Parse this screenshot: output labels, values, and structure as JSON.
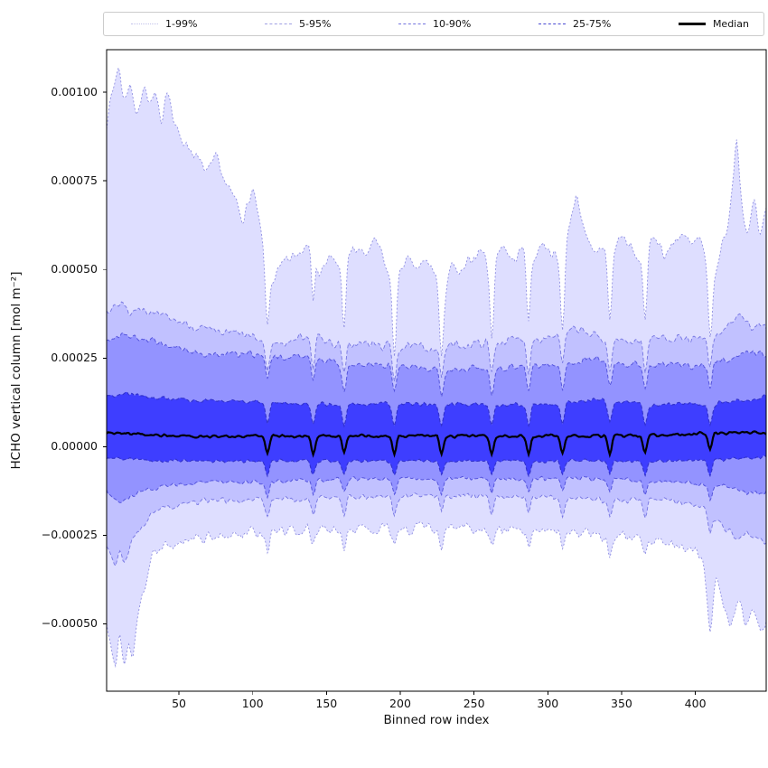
{
  "legend": {
    "items": [
      {
        "label": "1-99%",
        "color": "#c2c2ea",
        "style": "dotted"
      },
      {
        "label": "5-95%",
        "color": "#a0a0e4",
        "style": "dashed"
      },
      {
        "label": "10-90%",
        "color": "#7474de",
        "style": "dashed"
      },
      {
        "label": "25-75%",
        "color": "#4a4ad2",
        "style": "dashed"
      },
      {
        "label": "Median",
        "color": "#000000",
        "style": "solid"
      }
    ]
  },
  "chart_data": {
    "type": "area",
    "subtype": "percentile-band-plot",
    "title": "",
    "xlabel": "Binned row index",
    "ylabel": "HCHO vertical column [mol m⁻²]",
    "xlim": [
      1,
      448
    ],
    "ylim": [
      -0.00069,
      0.00112
    ],
    "grid": false,
    "legend_position": "top",
    "x_tick_values": [
      50,
      100,
      150,
      200,
      250,
      300,
      350,
      400
    ],
    "x_tick_labels": [
      "50",
      "100",
      "150",
      "200",
      "250",
      "300",
      "350",
      "400"
    ],
    "y_tick_values": [
      0.001,
      0.00075,
      0.0005,
      0.00025,
      0,
      -0.00025,
      -0.0005
    ],
    "y_tick_labels": [
      "0.00100",
      "0.00075",
      "0.00050",
      "0.00025",
      "0.00000",
      "−0.00025",
      "−0.00050"
    ],
    "n_points": 448,
    "noise_seed": 7,
    "spikes": {
      "positions": [
        110,
        141,
        162,
        196,
        228,
        262,
        287,
        310,
        342,
        366,
        410
      ],
      "sigma": 1.3
    },
    "series": [
      {
        "name": "p99",
        "noise": 2.5e-05,
        "spike_dip": 0.00018,
        "anchors": [
          [
            1,
            0.00092
          ],
          [
            5,
            0.001
          ],
          [
            9,
            0.00108
          ],
          [
            13,
            0.00097
          ],
          [
            17,
            0.00104
          ],
          [
            21,
            0.00092
          ],
          [
            26,
            0.00103
          ],
          [
            30,
            0.00096
          ],
          [
            34,
            0.00099
          ],
          [
            38,
            0.00091
          ],
          [
            42,
            0.00103
          ],
          [
            47,
            0.0009
          ],
          [
            52,
            0.00087
          ],
          [
            58,
            0.00084
          ],
          [
            64,
            0.0008
          ],
          [
            70,
            0.00077
          ],
          [
            76,
            0.00082
          ],
          [
            82,
            0.00073
          ],
          [
            88,
            0.0007
          ],
          [
            94,
            0.00064
          ],
          [
            100,
            0.00073
          ],
          [
            104,
            0.00064
          ],
          [
            108,
            0.00054
          ],
          [
            114,
            0.00047
          ],
          [
            122,
            0.00052
          ],
          [
            130,
            0.00054
          ],
          [
            136,
            0.00057
          ],
          [
            140,
            0.00063
          ],
          [
            145,
            0.00049
          ],
          [
            152,
            0.00053
          ],
          [
            160,
            0.00051
          ],
          [
            168,
            0.00056
          ],
          [
            176,
            0.00054
          ],
          [
            184,
            0.00058
          ],
          [
            190,
            0.00051
          ],
          [
            196,
            0.00044
          ],
          [
            203,
            0.00053
          ],
          [
            210,
            0.0005
          ],
          [
            218,
            0.00052
          ],
          [
            224,
            0.00049
          ],
          [
            228,
            0.00041
          ],
          [
            234,
            0.00051
          ],
          [
            241,
            0.00048
          ],
          [
            248,
            0.00053
          ],
          [
            255,
            0.00056
          ],
          [
            262,
            0.00049
          ],
          [
            269,
            0.00058
          ],
          [
            276,
            0.00052
          ],
          [
            283,
            0.00056
          ],
          [
            290,
            0.00053
          ],
          [
            297,
            0.00058
          ],
          [
            304,
            0.00054
          ],
          [
            310,
            0.00051
          ],
          [
            316,
            0.00066
          ],
          [
            320,
            0.00072
          ],
          [
            325,
            0.00059
          ],
          [
            331,
            0.00054
          ],
          [
            337,
            0.00057
          ],
          [
            343,
            0.00053
          ],
          [
            349,
            0.0006
          ],
          [
            355,
            0.00057
          ],
          [
            361,
            0.00052
          ],
          [
            367,
            0.00055
          ],
          [
            373,
            0.0006
          ],
          [
            379,
            0.00054
          ],
          [
            385,
            0.00057
          ],
          [
            391,
            0.00061
          ],
          [
            397,
            0.00056
          ],
          [
            403,
            0.00059
          ],
          [
            408,
            0.0005
          ],
          [
            413,
            0.00047
          ],
          [
            418,
            0.00057
          ],
          [
            423,
            0.00064
          ],
          [
            428,
            0.00089
          ],
          [
            432,
            0.00066
          ],
          [
            436,
            0.00059
          ],
          [
            440,
            0.00071
          ],
          [
            444,
            0.00058
          ],
          [
            448,
            0.00068
          ]
        ]
      },
      {
        "name": "p95",
        "noise": 1.8e-05,
        "spike_dip": 9e-05,
        "anchors": [
          [
            1,
            0.00038
          ],
          [
            8,
            0.00041
          ],
          [
            16,
            0.00038
          ],
          [
            24,
            0.0004
          ],
          [
            32,
            0.00037
          ],
          [
            45,
            0.00036
          ],
          [
            60,
            0.00034
          ],
          [
            75,
            0.00032
          ],
          [
            90,
            0.00032
          ],
          [
            105,
            0.0003
          ],
          [
            120,
            0.00029
          ],
          [
            140,
            0.00032
          ],
          [
            155,
            0.00029
          ],
          [
            175,
            0.00029
          ],
          [
            200,
            0.00028
          ],
          [
            225,
            0.00028
          ],
          [
            250,
            0.00029
          ],
          [
            275,
            0.0003
          ],
          [
            300,
            0.00031
          ],
          [
            320,
            0.00033
          ],
          [
            340,
            0.0003
          ],
          [
            360,
            0.0003
          ],
          [
            380,
            0.00031
          ],
          [
            400,
            0.0003
          ],
          [
            415,
            0.00031
          ],
          [
            428,
            0.00037
          ],
          [
            440,
            0.00033
          ],
          [
            448,
            0.00035
          ]
        ]
      },
      {
        "name": "p90",
        "noise": 1.4e-05,
        "spike_dip": 7e-05,
        "anchors": [
          [
            1,
            0.0003
          ],
          [
            12,
            0.00032
          ],
          [
            25,
            0.0003
          ],
          [
            40,
            0.00029
          ],
          [
            55,
            0.00027
          ],
          [
            70,
            0.00026
          ],
          [
            85,
            0.00026
          ],
          [
            100,
            0.00026
          ],
          [
            120,
            0.00025
          ],
          [
            140,
            0.00026
          ],
          [
            160,
            0.00023
          ],
          [
            185,
            0.00023
          ],
          [
            210,
            0.00022
          ],
          [
            235,
            0.00022
          ],
          [
            260,
            0.00022
          ],
          [
            285,
            0.00023
          ],
          [
            310,
            0.00023
          ],
          [
            330,
            0.00025
          ],
          [
            355,
            0.00023
          ],
          [
            380,
            0.00023
          ],
          [
            405,
            0.00023
          ],
          [
            425,
            0.00025
          ],
          [
            438,
            0.00027
          ],
          [
            448,
            0.00026
          ]
        ]
      },
      {
        "name": "p75",
        "noise": 9e-06,
        "spike_dip": 6e-05,
        "anchors": [
          [
            1,
            0.00014
          ],
          [
            15,
            0.00015
          ],
          [
            35,
            0.00014
          ],
          [
            60,
            0.00013
          ],
          [
            90,
            0.00013
          ],
          [
            130,
            0.00012
          ],
          [
            170,
            0.00012
          ],
          [
            210,
            0.00012
          ],
          [
            250,
            0.00012
          ],
          [
            290,
            0.00012
          ],
          [
            330,
            0.00013
          ],
          [
            370,
            0.00012
          ],
          [
            405,
            0.00012
          ],
          [
            430,
            0.00013
          ],
          [
            448,
            0.00014
          ]
        ]
      },
      {
        "name": "median",
        "noise": 6e-06,
        "spike_dip": 5e-05,
        "anchors": [
          [
            1,
            4e-05
          ],
          [
            50,
            3e-05
          ],
          [
            120,
            3e-05
          ],
          [
            200,
            3e-05
          ],
          [
            280,
            3e-05
          ],
          [
            360,
            3e-05
          ],
          [
            420,
            4e-05
          ],
          [
            448,
            4e-05
          ]
        ]
      },
      {
        "name": "p25",
        "noise": 7e-06,
        "spike_dip": 4e-05,
        "anchors": [
          [
            1,
            -3e-05
          ],
          [
            40,
            -4e-05
          ],
          [
            120,
            -4e-05
          ],
          [
            220,
            -4e-05
          ],
          [
            320,
            -4e-05
          ],
          [
            400,
            -4e-05
          ],
          [
            448,
            -3e-05
          ]
        ]
      },
      {
        "name": "p10",
        "noise": 9e-06,
        "spike_dip": 4e-05,
        "anchors": [
          [
            1,
            -0.00013
          ],
          [
            10,
            -0.00016
          ],
          [
            22,
            -0.00013
          ],
          [
            40,
            -0.00011
          ],
          [
            70,
            -0.0001
          ],
          [
            110,
            -0.0001
          ],
          [
            160,
            -9e-05
          ],
          [
            220,
            -9e-05
          ],
          [
            280,
            -9e-05
          ],
          [
            340,
            -9e-05
          ],
          [
            390,
            -0.0001
          ],
          [
            418,
            -0.00011
          ],
          [
            435,
            -0.00013
          ],
          [
            448,
            -0.00013
          ]
        ]
      },
      {
        "name": "p5",
        "noise": 1.3e-05,
        "spike_dip": 5e-05,
        "anchors": [
          [
            1,
            -0.00028
          ],
          [
            4,
            -0.00031
          ],
          [
            7,
            -0.00035
          ],
          [
            10,
            -0.00029
          ],
          [
            13,
            -0.00034
          ],
          [
            17,
            -0.00027
          ],
          [
            22,
            -0.00024
          ],
          [
            28,
            -0.00021
          ],
          [
            35,
            -0.00018
          ],
          [
            50,
            -0.00016
          ],
          [
            75,
            -0.00015
          ],
          [
            110,
            -0.00015
          ],
          [
            160,
            -0.00014
          ],
          [
            220,
            -0.00014
          ],
          [
            280,
            -0.00014
          ],
          [
            340,
            -0.00015
          ],
          [
            380,
            -0.00015
          ],
          [
            405,
            -0.00017
          ],
          [
            418,
            -0.00022
          ],
          [
            428,
            -0.00026
          ],
          [
            436,
            -0.00024
          ],
          [
            448,
            -0.00027
          ]
        ]
      },
      {
        "name": "p1",
        "noise": 2.2e-05,
        "spike_dip": 5e-05,
        "anchors": [
          [
            1,
            -0.00052
          ],
          [
            4,
            -0.00057
          ],
          [
            7,
            -0.00063
          ],
          [
            10,
            -0.00051
          ],
          [
            13,
            -0.00064
          ],
          [
            16,
            -0.00053
          ],
          [
            19,
            -0.00061
          ],
          [
            22,
            -0.00049
          ],
          [
            25,
            -0.00042
          ],
          [
            28,
            -0.00037
          ],
          [
            32,
            -0.00031
          ],
          [
            38,
            -0.00028
          ],
          [
            48,
            -0.00027
          ],
          [
            65,
            -0.00026
          ],
          [
            85,
            -0.00025
          ],
          [
            110,
            -0.00024
          ],
          [
            150,
            -0.00023
          ],
          [
            200,
            -0.00023
          ],
          [
            250,
            -0.00023
          ],
          [
            300,
            -0.00024
          ],
          [
            345,
            -0.00025
          ],
          [
            375,
            -0.00026
          ],
          [
            395,
            -0.00028
          ],
          [
            405,
            -0.00031
          ],
          [
            410,
            -0.00049
          ],
          [
            414,
            -0.00036
          ],
          [
            419,
            -0.00044
          ],
          [
            424,
            -0.00052
          ],
          [
            429,
            -0.00043
          ],
          [
            434,
            -0.00051
          ],
          [
            439,
            -0.00046
          ],
          [
            444,
            -0.00052
          ],
          [
            448,
            -0.0005
          ]
        ]
      }
    ],
    "bands": [
      {
        "label": "1-99%",
        "low": "p1",
        "high": "p99",
        "fill": "rgba(0,0,255,0.13)"
      },
      {
        "label": "5-95%",
        "low": "p5",
        "high": "p95",
        "fill": "rgba(0,0,255,0.13)"
      },
      {
        "label": "10-90%",
        "low": "p10",
        "high": "p90",
        "fill": "rgba(0,0,255,0.24)"
      },
      {
        "label": "25-75%",
        "low": "p25",
        "high": "p75",
        "fill": "rgba(0,0,255,0.58)"
      }
    ],
    "lines": [
      {
        "series": "p99",
        "color": "rgba(80,80,205,0.6)",
        "dash": "2 2.2",
        "width": 0.9
      },
      {
        "series": "p1",
        "color": "rgba(80,80,205,0.6)",
        "dash": "2 2.2",
        "width": 0.9
      },
      {
        "series": "p95",
        "color": "rgba(85,85,215,0.7)",
        "dash": "4 2.4",
        "width": 0.95
      },
      {
        "series": "p5",
        "color": "rgba(85,85,215,0.7)",
        "dash": "4 2.4",
        "width": 0.95
      },
      {
        "series": "p90",
        "color": "rgba(70,70,215,0.85)",
        "dash": "4 2.4",
        "width": 1
      },
      {
        "series": "p10",
        "color": "rgba(70,70,215,0.85)",
        "dash": "4 2.4",
        "width": 1
      },
      {
        "series": "p75",
        "color": "rgba(46,46,200,0.95)",
        "dash": "4 2.4",
        "width": 1.1
      },
      {
        "series": "p25",
        "color": "rgba(46,46,200,0.95)",
        "dash": "4 2.4",
        "width": 1.1
      }
    ],
    "median": {
      "series": "median",
      "label": "Median",
      "color": "#000000",
      "width": 2.2
    }
  }
}
